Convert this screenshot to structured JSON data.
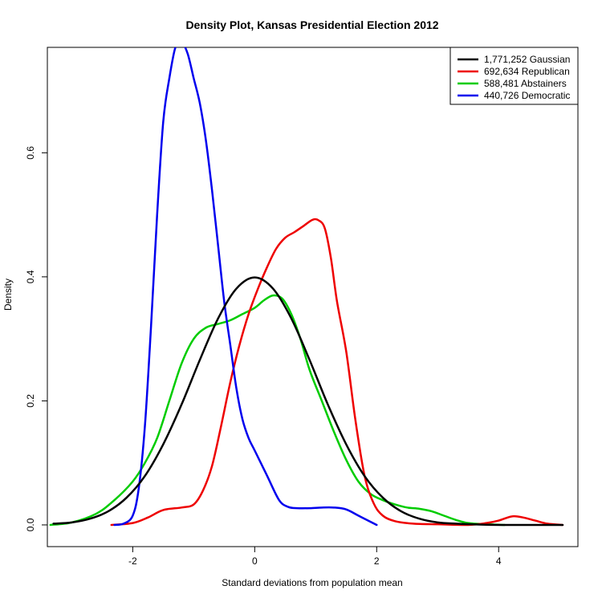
{
  "chart_data": {
    "type": "line",
    "title": "Density Plot, Kansas Presidential Election 2012",
    "xlabel": "Standard deviations from population mean",
    "ylabel": "Density",
    "xlim": [
      -3.4,
      5.3
    ],
    "ylim": [
      -0.035,
      0.77
    ],
    "x_ticks": [
      -2,
      0,
      2,
      4
    ],
    "x_tick_labels": [
      "-2",
      "0",
      "2",
      "4"
    ],
    "y_ticks": [
      0.0,
      0.2,
      0.4,
      0.6
    ],
    "y_tick_labels": [
      "0.0",
      "0.2",
      "0.4",
      "0.6"
    ],
    "legend_position": "top-right",
    "series": [
      {
        "name": "1,771,252 Gaussian",
        "color": "#000000",
        "points": [
          [
            -3.3,
            0.002
          ],
          [
            -3.0,
            0.004
          ],
          [
            -2.7,
            0.01
          ],
          [
            -2.4,
            0.022
          ],
          [
            -2.1,
            0.044
          ],
          [
            -1.8,
            0.079
          ],
          [
            -1.5,
            0.13
          ],
          [
            -1.2,
            0.194
          ],
          [
            -0.9,
            0.266
          ],
          [
            -0.6,
            0.333
          ],
          [
            -0.3,
            0.381
          ],
          [
            0.0,
            0.399
          ],
          [
            0.3,
            0.381
          ],
          [
            0.6,
            0.333
          ],
          [
            0.9,
            0.266
          ],
          [
            1.2,
            0.194
          ],
          [
            1.5,
            0.13
          ],
          [
            1.8,
            0.079
          ],
          [
            2.1,
            0.044
          ],
          [
            2.4,
            0.022
          ],
          [
            2.7,
            0.01
          ],
          [
            3.0,
            0.004
          ],
          [
            3.3,
            0.002
          ],
          [
            3.8,
            0.0003
          ],
          [
            4.3,
            0.0
          ],
          [
            5.05,
            0.0
          ]
        ]
      },
      {
        "name": "692,634 Republican",
        "color": "#ee0000",
        "points": [
          [
            -2.35,
            0.0
          ],
          [
            -2.0,
            0.003
          ],
          [
            -1.75,
            0.012
          ],
          [
            -1.5,
            0.024
          ],
          [
            -1.2,
            0.028
          ],
          [
            -1.0,
            0.033
          ],
          [
            -0.85,
            0.055
          ],
          [
            -0.7,
            0.095
          ],
          [
            -0.55,
            0.16
          ],
          [
            -0.4,
            0.23
          ],
          [
            -0.25,
            0.29
          ],
          [
            -0.1,
            0.34
          ],
          [
            0.05,
            0.38
          ],
          [
            0.2,
            0.415
          ],
          [
            0.35,
            0.445
          ],
          [
            0.5,
            0.463
          ],
          [
            0.65,
            0.472
          ],
          [
            0.8,
            0.482
          ],
          [
            0.95,
            0.492
          ],
          [
            1.05,
            0.491
          ],
          [
            1.15,
            0.478
          ],
          [
            1.25,
            0.43
          ],
          [
            1.35,
            0.36
          ],
          [
            1.5,
            0.28
          ],
          [
            1.65,
            0.17
          ],
          [
            1.8,
            0.08
          ],
          [
            1.95,
            0.035
          ],
          [
            2.1,
            0.015
          ],
          [
            2.3,
            0.006
          ],
          [
            2.6,
            0.002
          ],
          [
            3.0,
            0.001
          ],
          [
            3.5,
            0.0
          ],
          [
            3.8,
            0.003
          ],
          [
            4.0,
            0.007
          ],
          [
            4.15,
            0.012
          ],
          [
            4.25,
            0.014
          ],
          [
            4.4,
            0.012
          ],
          [
            4.6,
            0.007
          ],
          [
            4.8,
            0.002
          ],
          [
            5.05,
            0.0
          ]
        ]
      },
      {
        "name": "588,481 Abstainers",
        "color": "#00cc00",
        "points": [
          [
            -3.35,
            0.0
          ],
          [
            -3.0,
            0.004
          ],
          [
            -2.6,
            0.018
          ],
          [
            -2.3,
            0.04
          ],
          [
            -2.0,
            0.07
          ],
          [
            -1.8,
            0.1
          ],
          [
            -1.6,
            0.14
          ],
          [
            -1.4,
            0.2
          ],
          [
            -1.2,
            0.26
          ],
          [
            -1.0,
            0.3
          ],
          [
            -0.8,
            0.318
          ],
          [
            -0.6,
            0.324
          ],
          [
            -0.4,
            0.33
          ],
          [
            -0.2,
            0.34
          ],
          [
            0.0,
            0.35
          ],
          [
            0.15,
            0.362
          ],
          [
            0.3,
            0.37
          ],
          [
            0.45,
            0.365
          ],
          [
            0.6,
            0.34
          ],
          [
            0.75,
            0.3
          ],
          [
            0.9,
            0.25
          ],
          [
            1.1,
            0.2
          ],
          [
            1.3,
            0.15
          ],
          [
            1.5,
            0.105
          ],
          [
            1.7,
            0.07
          ],
          [
            1.9,
            0.05
          ],
          [
            2.1,
            0.04
          ],
          [
            2.3,
            0.033
          ],
          [
            2.5,
            0.028
          ],
          [
            2.7,
            0.026
          ],
          [
            2.9,
            0.022
          ],
          [
            3.1,
            0.015
          ],
          [
            3.3,
            0.008
          ],
          [
            3.5,
            0.003
          ],
          [
            3.8,
            0.001
          ],
          [
            4.1,
            0.0
          ]
        ]
      },
      {
        "name": "440,726 Democratic",
        "color": "#0000ee",
        "points": [
          [
            -2.3,
            0.0
          ],
          [
            -2.15,
            0.002
          ],
          [
            -2.0,
            0.015
          ],
          [
            -1.9,
            0.06
          ],
          [
            -1.8,
            0.16
          ],
          [
            -1.7,
            0.32
          ],
          [
            -1.6,
            0.5
          ],
          [
            -1.5,
            0.65
          ],
          [
            -1.4,
            0.72
          ],
          [
            -1.3,
            0.77
          ],
          [
            -1.2,
            0.778
          ],
          [
            -1.1,
            0.76
          ],
          [
            -1.0,
            0.72
          ],
          [
            -0.9,
            0.68
          ],
          [
            -0.8,
            0.62
          ],
          [
            -0.7,
            0.54
          ],
          [
            -0.6,
            0.45
          ],
          [
            -0.5,
            0.36
          ],
          [
            -0.4,
            0.29
          ],
          [
            -0.3,
            0.22
          ],
          [
            -0.2,
            0.17
          ],
          [
            -0.1,
            0.14
          ],
          [
            0.0,
            0.12
          ],
          [
            0.2,
            0.08
          ],
          [
            0.4,
            0.04
          ],
          [
            0.55,
            0.029
          ],
          [
            0.7,
            0.027
          ],
          [
            0.9,
            0.027
          ],
          [
            1.1,
            0.028
          ],
          [
            1.3,
            0.028
          ],
          [
            1.5,
            0.025
          ],
          [
            1.7,
            0.015
          ],
          [
            1.9,
            0.005
          ],
          [
            2.0,
            0.0
          ]
        ]
      }
    ]
  }
}
